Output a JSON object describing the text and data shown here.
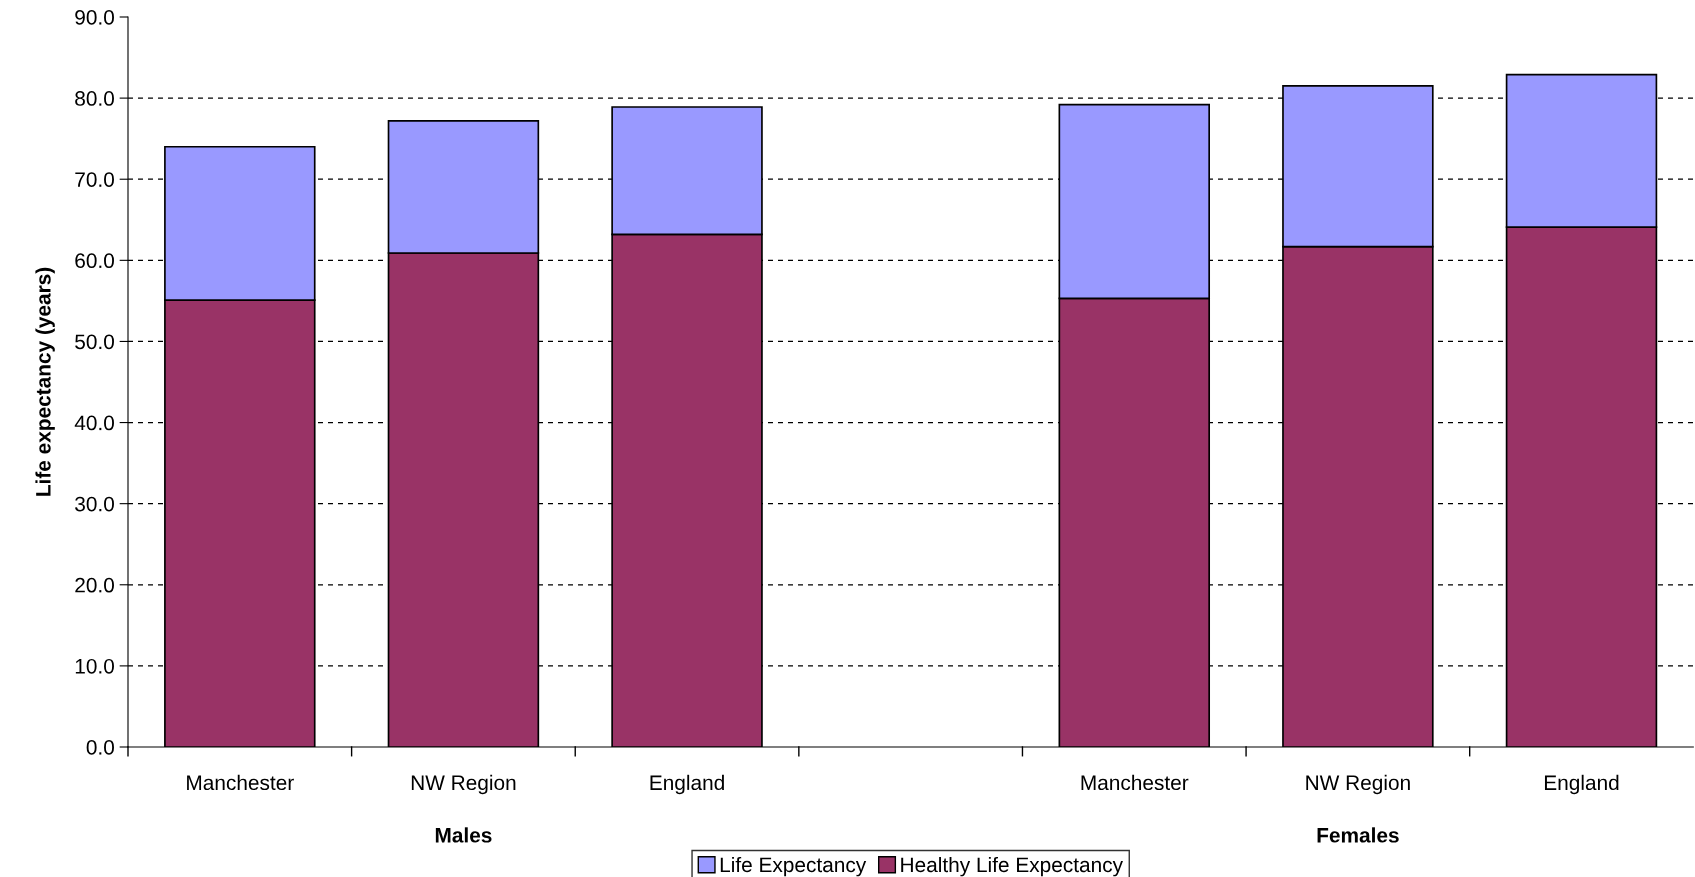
{
  "chart_data": {
    "type": "bar",
    "stacked": true,
    "ylabel": "Life expectancy (years)",
    "categories": [
      "Manchester",
      "NW Region",
      "England",
      null,
      "Manchester",
      "NW Region",
      "England"
    ],
    "series": [
      {
        "name": "Healthy Life Expectancy",
        "color": "#993366",
        "values": [
          55.1,
          60.9,
          63.2,
          null,
          55.3,
          61.7,
          64.1
        ]
      },
      {
        "name": "Life Expectancy",
        "color": "#9999ff",
        "values": [
          18.9,
          16.3,
          15.7,
          null,
          23.9,
          19.8,
          18.8
        ]
      }
    ],
    "ylim": [
      0,
      90
    ],
    "yticks": [
      {
        "value": 0,
        "label": "0.0"
      },
      {
        "value": 10,
        "label": "10.0"
      },
      {
        "value": 20,
        "label": "20.0"
      },
      {
        "value": 30,
        "label": "30.0"
      },
      {
        "value": 40,
        "label": "40.0"
      },
      {
        "value": 50,
        "label": "50.0"
      },
      {
        "value": 60,
        "label": "60.0"
      },
      {
        "value": 70,
        "label": "70.0"
      },
      {
        "value": 80,
        "label": "80.0"
      },
      {
        "value": 90,
        "label": "90.0"
      }
    ],
    "grid": "y",
    "legend": "bottom",
    "annotations": [
      "Males",
      "Females"
    ]
  }
}
